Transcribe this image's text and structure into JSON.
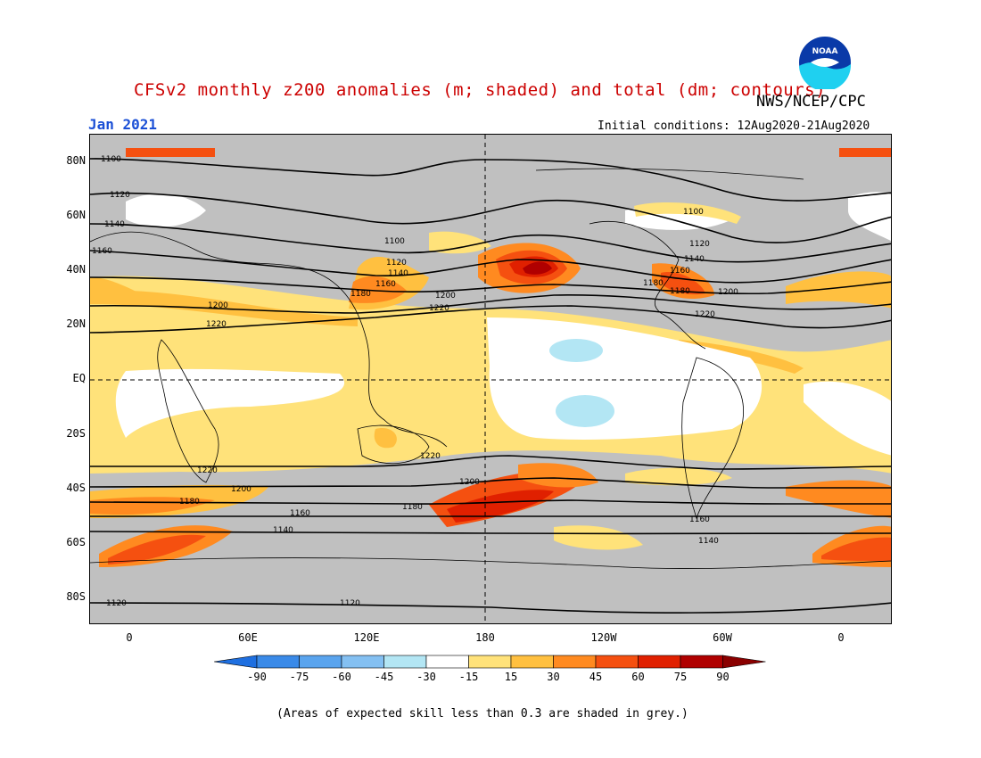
{
  "title": "CFSv2 monthly z200 anomalies (m; shaded) and total (dm; contours)",
  "agency": "NWS/NCEP/CPC",
  "month": "Jan 2021",
  "initial_conditions": "Initial conditions: 12Aug2020-21Aug2020",
  "footnote": "(Areas of expected skill less than 0.3 are shaded in grey.)",
  "logo_text": "NOAA",
  "lat_labels": [
    "80N",
    "60N",
    "40N",
    "20N",
    "EQ",
    "20S",
    "40S",
    "60S",
    "80S"
  ],
  "lon_labels": [
    "0",
    "60E",
    "120E",
    "180",
    "120W",
    "60W",
    "0"
  ],
  "colorbar": {
    "ticks": [
      "-90",
      "-75",
      "-60",
      "-45",
      "-30",
      "-15",
      "15",
      "30",
      "45",
      "60",
      "75",
      "90"
    ],
    "colors": [
      "#1e6fe0",
      "#3a8ae8",
      "#5aa4ee",
      "#84c0f2",
      "#b3e6f4",
      "#ffffff",
      "#ffe27a",
      "#ffc040",
      "#ff8a20",
      "#f55010",
      "#e02000",
      "#b00000",
      "#8a0000"
    ]
  },
  "contours": {
    "labels": [
      "1100",
      "1120",
      "1140",
      "1160",
      "1180",
      "1200",
      "1220",
      "1100",
      "1120",
      "1140",
      "1160",
      "1180",
      "1200",
      "1220",
      "1100",
      "1120",
      "1140",
      "1160",
      "1180",
      "1200",
      "1220",
      "1220",
      "1200",
      "1180",
      "1160",
      "1140",
      "1120",
      "1220",
      "1200",
      "1180",
      "1160",
      "1140",
      "1120"
    ]
  },
  "colors": {
    "grey_skill": "#c0c0c0",
    "title_red": "#cc0000",
    "month_blue": "#1a4fd6"
  }
}
